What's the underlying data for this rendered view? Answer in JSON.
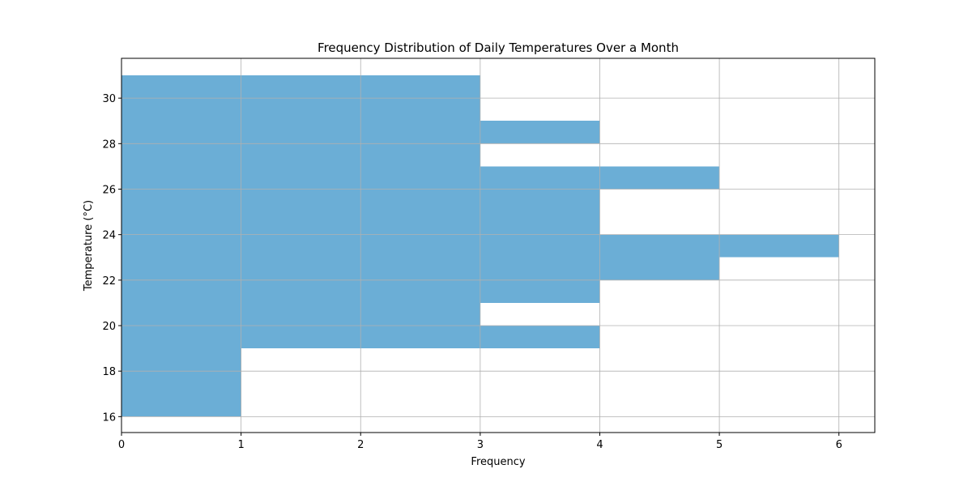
{
  "chart_data": {
    "type": "bar",
    "orientation": "horizontal",
    "title": "Frequency Distribution of Daily Temperatures Over a Month",
    "xlabel": "Frequency",
    "ylabel": "Temperature (°C)",
    "xlim": [
      0,
      6.3
    ],
    "ylim": [
      15.3,
      31.75
    ],
    "xticks": [
      0,
      1,
      2,
      3,
      4,
      5,
      6
    ],
    "yticks": [
      16,
      18,
      20,
      22,
      24,
      26,
      28,
      30
    ],
    "grid": true,
    "bar_color": "#6baed6",
    "bins": [
      {
        "from": 16,
        "to": 17,
        "value": 1
      },
      {
        "from": 17,
        "to": 18,
        "value": 1
      },
      {
        "from": 18,
        "to": 19,
        "value": 1
      },
      {
        "from": 19,
        "to": 20,
        "value": 4
      },
      {
        "from": 20,
        "to": 21,
        "value": 3
      },
      {
        "from": 21,
        "to": 22,
        "value": 4
      },
      {
        "from": 22,
        "to": 23,
        "value": 5
      },
      {
        "from": 23,
        "to": 24,
        "value": 6
      },
      {
        "from": 24,
        "to": 25,
        "value": 4
      },
      {
        "from": 25,
        "to": 26,
        "value": 4
      },
      {
        "from": 26,
        "to": 27,
        "value": 5
      },
      {
        "from": 27,
        "to": 28,
        "value": 3
      },
      {
        "from": 28,
        "to": 29,
        "value": 4
      },
      {
        "from": 29,
        "to": 30,
        "value": 3
      },
      {
        "from": 30,
        "to": 31,
        "value": 3
      }
    ]
  }
}
